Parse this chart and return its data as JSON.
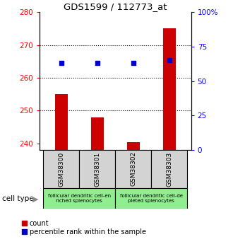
{
  "title": "GDS1599 / 112773_at",
  "samples": [
    "GSM38300",
    "GSM38301",
    "GSM38302",
    "GSM38303"
  ],
  "counts": [
    255.0,
    248.0,
    240.5,
    275.0
  ],
  "percentile_ranks": [
    63.0,
    63.0,
    63.0,
    65.0
  ],
  "ylim_left": [
    238,
    280
  ],
  "ylim_right": [
    0,
    100
  ],
  "yticks_left": [
    240,
    250,
    260,
    270,
    280
  ],
  "yticks_right": [
    0,
    25,
    50,
    75,
    100
  ],
  "yticklabels_right": [
    "0",
    "25",
    "50",
    "75",
    "100%"
  ],
  "bar_color": "#cc0000",
  "dot_color": "#0000cc",
  "grid_yticks": [
    250,
    260,
    270
  ],
  "cell_type_groups": [
    {
      "label": "follicular dendritic cell-en\nriched splenocytes",
      "color": "#90ee90"
    },
    {
      "label": "follicular dendritic cell-de\npleted splenocytes",
      "color": "#90ee90"
    }
  ],
  "cell_type_label": "cell type",
  "legend_count_label": "count",
  "legend_pct_label": "percentile rank within the sample",
  "bar_width": 0.35,
  "x_positions": [
    0,
    1,
    2,
    3
  ]
}
